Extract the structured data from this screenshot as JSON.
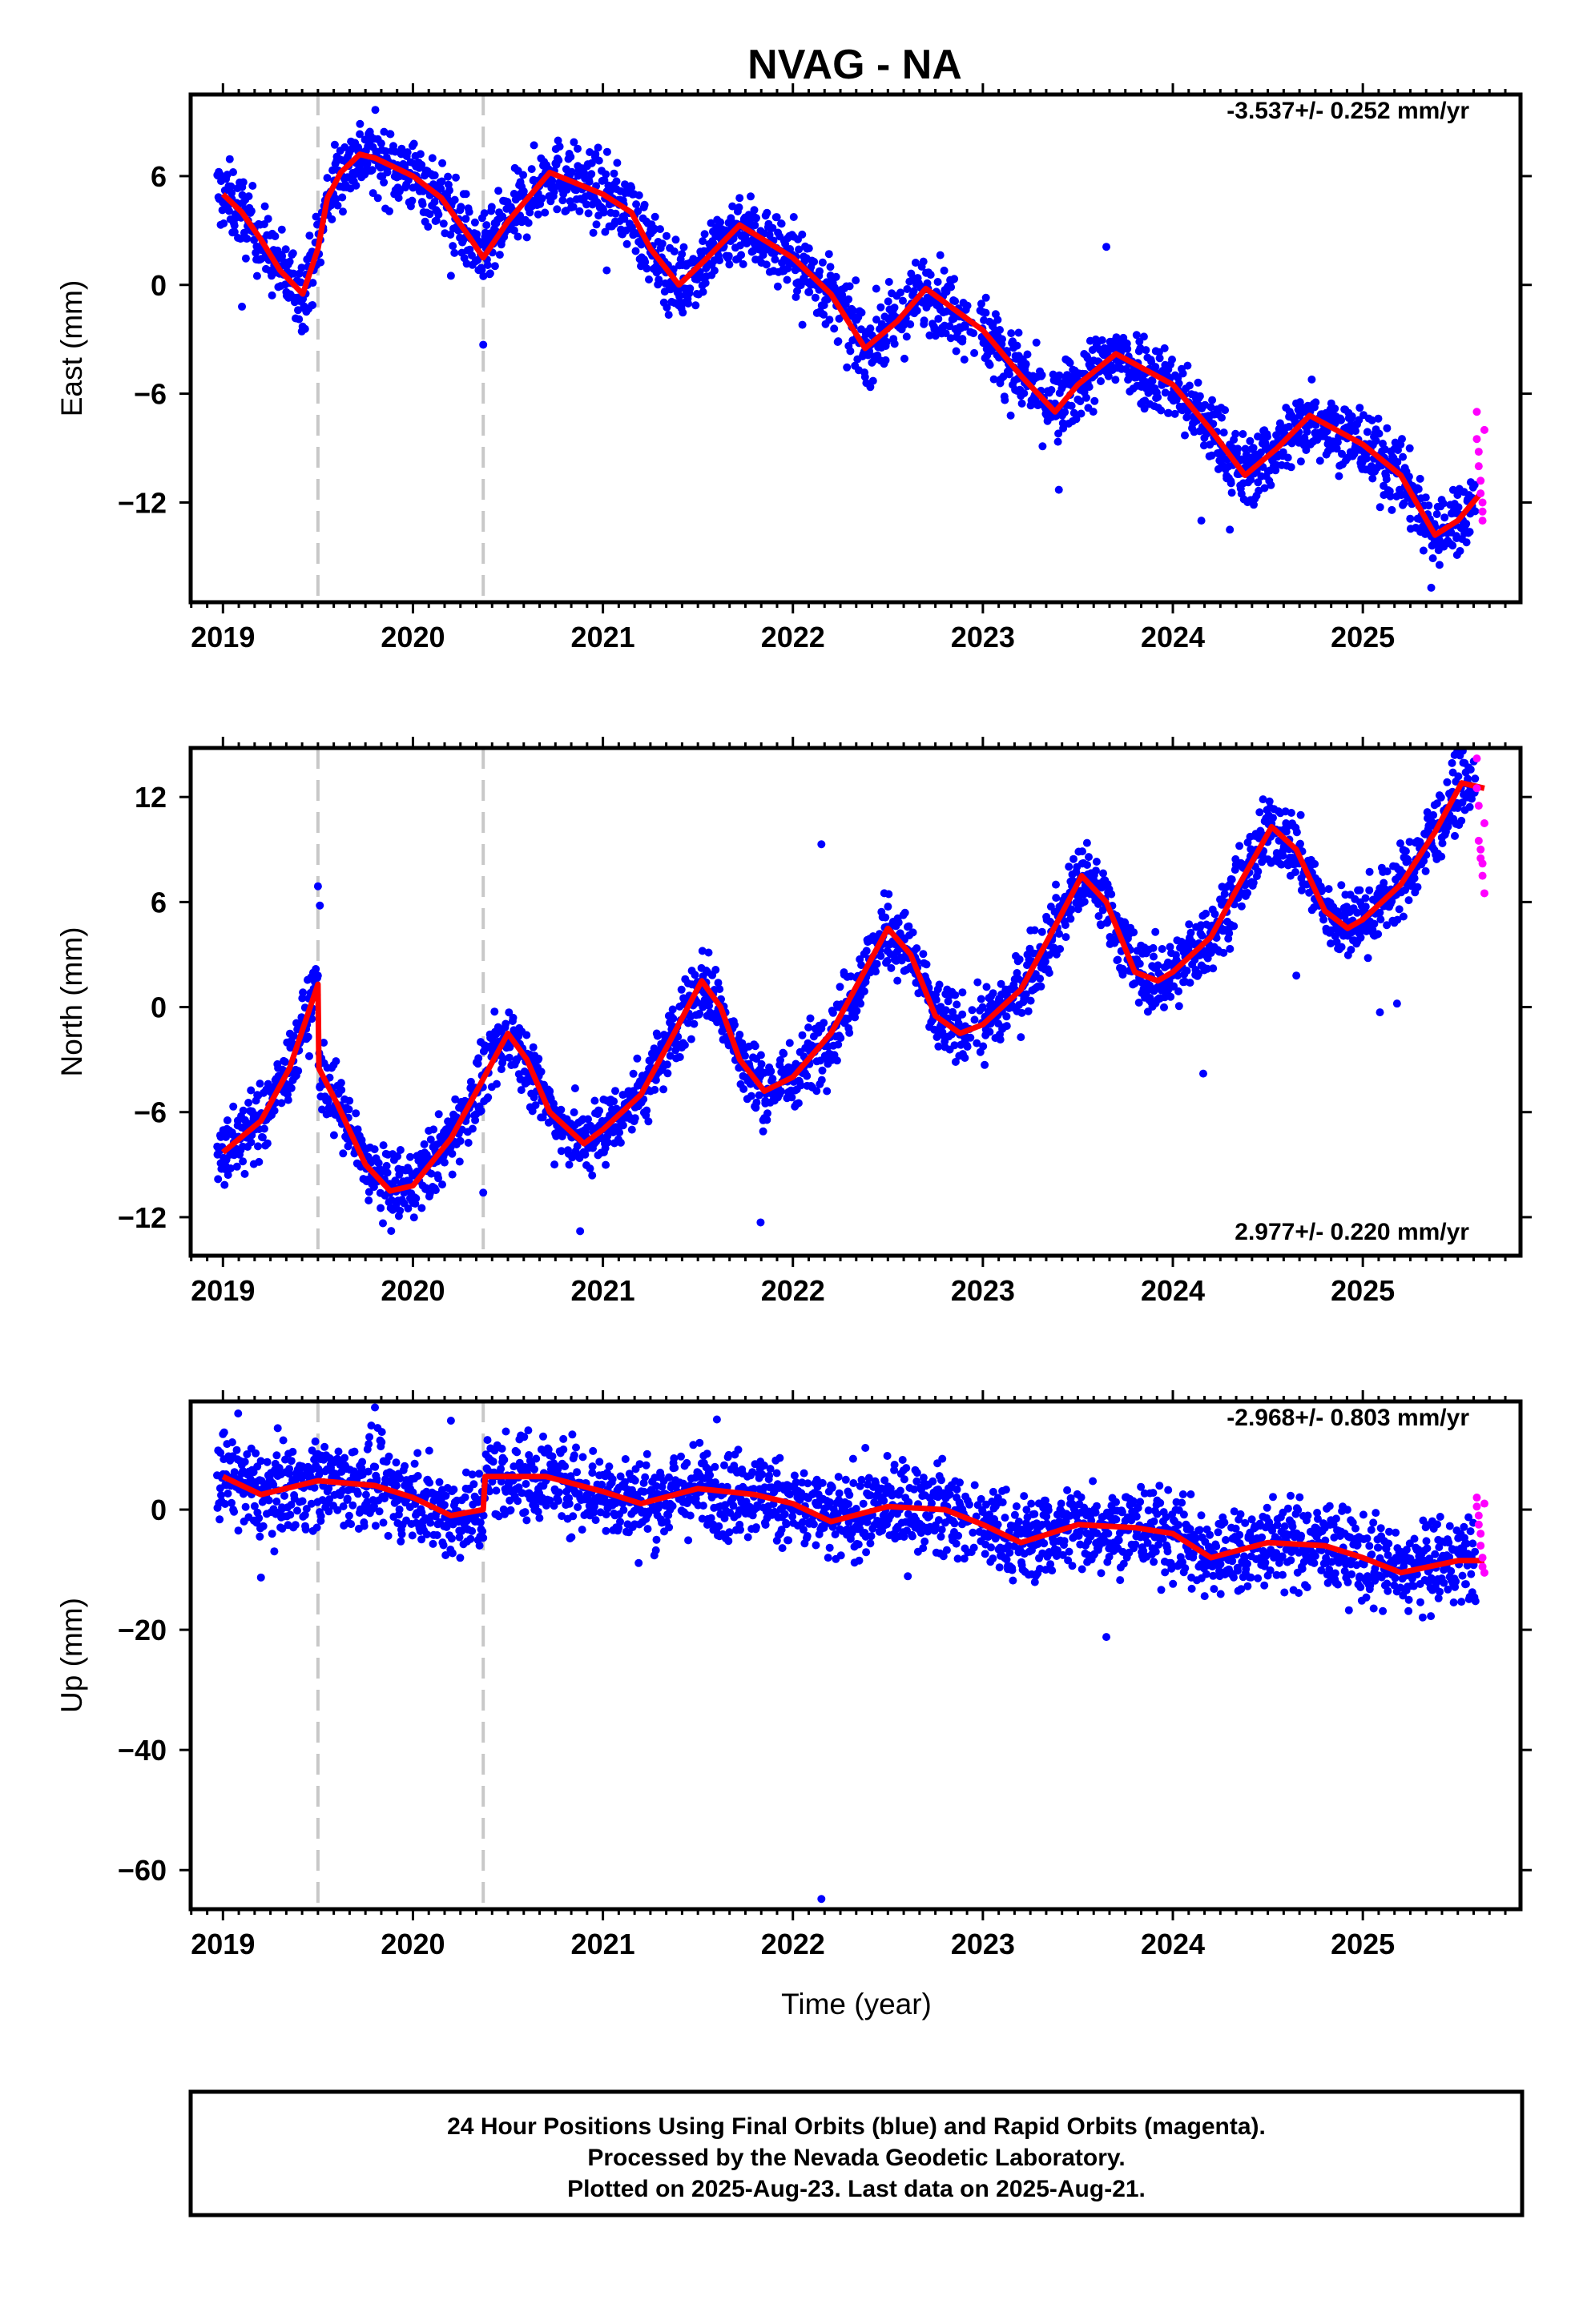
{
  "title": "NVAG - NA",
  "colors": {
    "final_orbits": "#0000ff",
    "rapid_orbits": "#ff00ff",
    "model": "#ff0000",
    "event_lines": "#c8c8c8"
  },
  "chart_data": [
    {
      "type": "scatter",
      "name": "east",
      "ylabel": "East (mm)",
      "rate_text": "-3.537+/- 0.252 mm/yr",
      "xlim": [
        2018.83,
        2025.83
      ],
      "ylim": [
        -17.5,
        10.5
      ],
      "yticks": [
        6,
        0,
        -6,
        -12
      ],
      "xticks": [
        2019,
        2020,
        2021,
        2022,
        2023,
        2024,
        2025
      ],
      "grid": false,
      "event_lines": [
        2019.5,
        2020.37
      ],
      "model": {
        "t": [
          2019.0,
          2019.1,
          2019.2,
          2019.3,
          2019.42,
          2019.5,
          2019.55,
          2019.62,
          2019.72,
          2019.8,
          2020.0,
          2020.15,
          2020.3,
          2020.37,
          2020.5,
          2020.72,
          2021.0,
          2021.15,
          2021.25,
          2021.4,
          2021.55,
          2021.72,
          2022.0,
          2022.2,
          2022.38,
          2022.55,
          2022.7,
          2023.0,
          2023.2,
          2023.38,
          2023.5,
          2023.7,
          2024.0,
          2024.2,
          2024.38,
          2024.55,
          2024.72,
          2025.0,
          2025.2,
          2025.38,
          2025.5,
          2025.62
        ],
        "v": [
          5.0,
          4.0,
          2.5,
          0.8,
          -0.5,
          2.0,
          4.8,
          6.2,
          7.2,
          7.0,
          6.0,
          4.8,
          2.6,
          1.5,
          3.5,
          6.2,
          5.0,
          4.0,
          2.0,
          0.0,
          1.5,
          3.3,
          1.5,
          -0.5,
          -3.5,
          -2.0,
          -0.2,
          -2.5,
          -5.0,
          -7.0,
          -5.5,
          -3.8,
          -5.5,
          -8.0,
          -10.5,
          -9.0,
          -7.2,
          -8.8,
          -10.5,
          -13.8,
          -13.0,
          -11.5
        ]
      },
      "rapid": {
        "t": [
          2025.6,
          2025.6,
          2025.61,
          2025.61,
          2025.62,
          2025.62,
          2025.63,
          2025.63,
          2025.63,
          2025.64
        ],
        "v": [
          -7.0,
          -8.5,
          -9.2,
          -10.0,
          -10.8,
          -11.5,
          -12.0,
          -12.5,
          -13.0,
          -8.0
        ]
      },
      "noise": 1.0,
      "outliers": {
        "t": [
          2020.37,
          2021.02,
          2022.05,
          2023.4,
          2023.65,
          2024.15,
          2024.3,
          2025.36,
          2019.1,
          2020.2,
          2024.5
        ],
        "v": [
          -3.3,
          0.8,
          -2.2,
          -11.3,
          2.1,
          -13.0,
          -13.5,
          -16.7,
          -1.2,
          0.5,
          -9.0
        ]
      }
    },
    {
      "type": "scatter",
      "name": "north",
      "ylabel": "North (mm)",
      "rate_text": "2.977+/- 0.220 mm/yr",
      "xlim": [
        2018.83,
        2025.83
      ],
      "ylim": [
        -14.2,
        14.8
      ],
      "yticks": [
        12,
        6,
        0,
        -6,
        -12
      ],
      "xticks": [
        2019,
        2020,
        2021,
        2022,
        2023,
        2024,
        2025
      ],
      "grid": false,
      "event_lines": [
        2019.5,
        2020.37
      ],
      "model": {
        "t": [
          2019.0,
          2019.2,
          2019.35,
          2019.5,
          2019.505,
          2019.6,
          2019.75,
          2019.88,
          2020.0,
          2020.2,
          2020.35,
          2020.5,
          2020.6,
          2020.72,
          2020.9,
          2021.0,
          2021.2,
          2021.35,
          2021.52,
          2021.62,
          2021.72,
          2021.85,
          2022.0,
          2022.2,
          2022.35,
          2022.5,
          2022.62,
          2022.75,
          2022.88,
          2023.0,
          2023.2,
          2023.35,
          2023.52,
          2023.65,
          2023.8,
          2023.92,
          2024.0,
          2024.2,
          2024.35,
          2024.52,
          2024.65,
          2024.8,
          2024.92,
          2025.0,
          2025.2,
          2025.38,
          2025.52,
          2025.64
        ],
        "v": [
          -8.3,
          -6.5,
          -3.5,
          1.3,
          -3.5,
          -5.5,
          -9.0,
          -10.5,
          -10.2,
          -7.5,
          -4.5,
          -1.5,
          -3.0,
          -6.0,
          -7.8,
          -7.0,
          -5.0,
          -2.0,
          1.5,
          0.0,
          -3.0,
          -4.8,
          -4.0,
          -1.5,
          1.5,
          4.5,
          3.0,
          -0.5,
          -1.5,
          -1.0,
          1.0,
          4.0,
          7.5,
          6.0,
          2.0,
          1.5,
          2.0,
          4.0,
          7.0,
          10.3,
          9.0,
          5.5,
          4.5,
          5.0,
          7.0,
          10.0,
          12.8,
          12.5
        ]
      },
      "rapid": {
        "t": [
          2025.6,
          2025.6,
          2025.61,
          2025.61,
          2025.62,
          2025.62,
          2025.63,
          2025.63,
          2025.64,
          2025.64
        ],
        "v": [
          14.2,
          12.5,
          11.5,
          9.5,
          9.0,
          8.5,
          8.2,
          7.5,
          6.5,
          10.5
        ]
      },
      "noise": 1.0,
      "outliers": {
        "t": [
          2019.5,
          2019.51,
          2020.37,
          2020.88,
          2021.83,
          2022.15,
          2024.16,
          2024.65,
          2025.09,
          2025.18
        ],
        "v": [
          6.9,
          5.8,
          -10.6,
          -12.8,
          -12.3,
          9.3,
          -3.8,
          1.8,
          -0.3,
          0.2
        ]
      }
    },
    {
      "type": "scatter",
      "name": "up",
      "ylabel": "Up (mm)",
      "rate_text": "-2.968+/- 0.803 mm/yr",
      "xlim": [
        2018.83,
        2025.83
      ],
      "ylim": [
        -66.5,
        18.0
      ],
      "yticks": [
        0,
        -20,
        -40,
        -60
      ],
      "xticks": [
        2019,
        2020,
        2021,
        2022,
        2023,
        2024,
        2025
      ],
      "grid": false,
      "event_lines": [
        2019.5,
        2020.37
      ],
      "model": {
        "t": [
          2019.0,
          2019.2,
          2019.5,
          2019.8,
          2020.0,
          2020.2,
          2020.37,
          2020.38,
          2020.7,
          2021.0,
          2021.2,
          2021.5,
          2021.8,
          2022.0,
          2022.2,
          2022.5,
          2022.8,
          2023.0,
          2023.2,
          2023.5,
          2023.8,
          2024.0,
          2024.2,
          2024.5,
          2024.8,
          2025.0,
          2025.2,
          2025.5,
          2025.64
        ],
        "v": [
          5.5,
          2.5,
          4.8,
          4.0,
          2.0,
          -1.0,
          0.0,
          5.5,
          5.5,
          3.0,
          1.0,
          3.5,
          2.5,
          1.0,
          -2.0,
          0.5,
          0.0,
          -2.5,
          -5.5,
          -2.5,
          -3.0,
          -4.0,
          -8.0,
          -5.5,
          -6.0,
          -8.0,
          -10.5,
          -8.5,
          -8.5
        ]
      },
      "rapid": {
        "t": [
          2025.6,
          2025.6,
          2025.61,
          2025.61,
          2025.62,
          2025.62,
          2025.63,
          2025.63,
          2025.64,
          2025.64
        ],
        "v": [
          2.0,
          0.5,
          -1.0,
          -2.5,
          -4.0,
          -6.0,
          -8.0,
          -9.5,
          -10.5,
          1.0
        ]
      },
      "noise": 3.6,
      "outliers": {
        "t": [
          2022.15,
          2023.65,
          2019.08,
          2019.8,
          2020.2,
          2021.6,
          2019.2
        ],
        "v": [
          -64.8,
          -21.2,
          16.0,
          17.0,
          14.8,
          15.0,
          -11.3
        ]
      }
    }
  ],
  "xlabel": "Time (year)",
  "footer": {
    "line1": "24 Hour Positions Using Final Orbits (blue) and Rapid Orbits (magenta).",
    "line2": "Processed by the Nevada Geodetic Laboratory.",
    "line3": "Plotted on 2025-Aug-23. Last data on 2025-Aug-21."
  }
}
